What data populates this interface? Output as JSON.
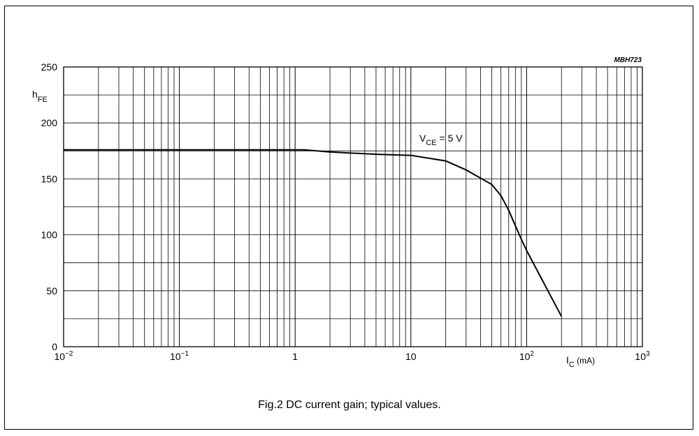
{
  "chart_data": {
    "type": "line",
    "caption": "Fig.2  DC current gain; typical values.",
    "code": "MBH723",
    "x_scale": "log",
    "xlim": [
      0.01,
      1000
    ],
    "ylim": [
      0,
      250
    ],
    "y_ticks": [
      0,
      50,
      100,
      150,
      200,
      250
    ],
    "y_gridlines_step": 25,
    "x_ticks": [
      {
        "value": 0.01,
        "base": "10",
        "exp": "−2"
      },
      {
        "value": 0.1,
        "base": "10",
        "exp": "−1"
      },
      {
        "value": 1,
        "base": "1",
        "exp": ""
      },
      {
        "value": 10,
        "base": "10",
        "exp": ""
      },
      {
        "value": 100,
        "base": "10",
        "exp": "2"
      },
      {
        "value": 1000,
        "base": "10",
        "exp": "3"
      }
    ],
    "xlabel": {
      "main": "I",
      "sub": "C",
      "unit": " (mA)"
    },
    "ylabel": {
      "main": "h",
      "sub": "FE"
    },
    "grid": true,
    "series": [
      {
        "name": "V_CE = 5 V",
        "label": {
          "main": "V",
          "sub": "CE",
          "rest": " = 5 V"
        },
        "x": [
          0.01,
          0.1,
          1,
          1.2,
          2,
          5,
          10,
          20,
          30,
          50,
          60,
          70,
          80,
          90,
          100,
          200
        ],
        "y": [
          176,
          176,
          176,
          176,
          174,
          172,
          171,
          166,
          158,
          145,
          135,
          122,
          108,
          96,
          86,
          27
        ]
      }
    ]
  }
}
